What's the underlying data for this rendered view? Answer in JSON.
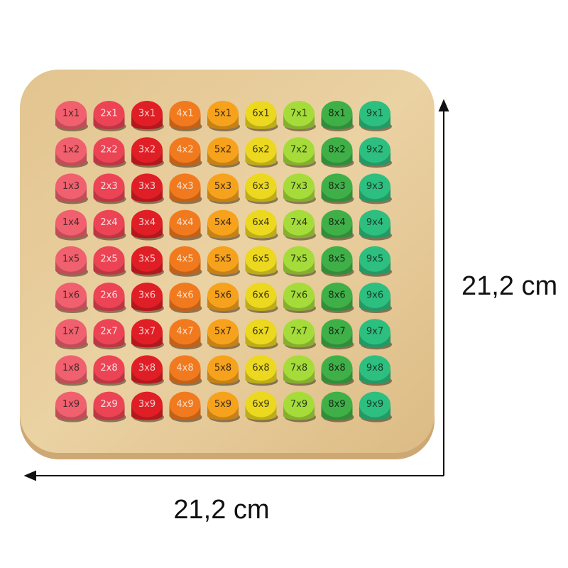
{
  "dimensions": {
    "height_label": "21,2 cm",
    "width_label": "21,2 cm"
  },
  "pegs": {
    "column_colors": [
      "#f0606e",
      "#ec4455",
      "#e01e26",
      "#f27a1e",
      "#f7a21c",
      "#ecd81e",
      "#a6dc3a",
      "#3fb048",
      "#2dbf80"
    ],
    "text_colors": [
      "#4a2a2a",
      "#f5e0e0",
      "#f0d0d0",
      "#f5e0d0",
      "#3a2a1a",
      "#3a3a1a",
      "#2a3a1a",
      "#1a2a1a",
      "#1a3a2a"
    ],
    "rows": [
      [
        "1x1",
        "2x1",
        "3x1",
        "4x1",
        "5x1",
        "6x1",
        "7x1",
        "8x1",
        "9x1"
      ],
      [
        "1x2",
        "2x2",
        "3x2",
        "4x2",
        "5x2",
        "6x2",
        "7x2",
        "8x2",
        "9x2"
      ],
      [
        "1x3",
        "2x3",
        "3x3",
        "4x3",
        "5x3",
        "6x3",
        "7x3",
        "8x3",
        "9x3"
      ],
      [
        "1x4",
        "2x4",
        "3x4",
        "4x4",
        "5x4",
        "6x4",
        "7x4",
        "8x4",
        "9x4"
      ],
      [
        "1x5",
        "2x5",
        "3x5",
        "4x5",
        "5x5",
        "6x5",
        "7x5",
        "8x5",
        "9x5"
      ],
      [
        "1x6",
        "2x6",
        "3x6",
        "4x6",
        "5x6",
        "6x6",
        "7x6",
        "8x6",
        "9x6"
      ],
      [
        "1x7",
        "2x7",
        "3x7",
        "4x7",
        "5x7",
        "6x7",
        "7x7",
        "8x7",
        "9x7"
      ],
      [
        "1x8",
        "2x8",
        "3x8",
        "4x8",
        "5x8",
        "6x8",
        "7x8",
        "8x8",
        "9x8"
      ],
      [
        "1x9",
        "2x9",
        "3x9",
        "4x9",
        "5x9",
        "6x9",
        "7x9",
        "8x9",
        "9x9"
      ]
    ]
  }
}
